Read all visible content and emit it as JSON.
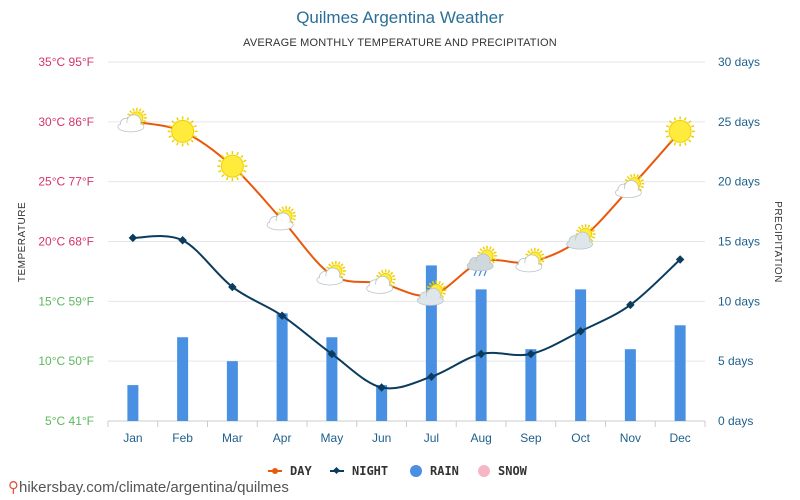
{
  "chart_data": {
    "type": "line+bar",
    "title": "Quilmes Argentina Weather",
    "subtitle": "AVERAGE MONTHLY TEMPERATURE AND PRECIPITATION",
    "ylabel": "TEMPERATURE",
    "y2label": "PRECIPITATION",
    "categories": [
      "Jan",
      "Feb",
      "Mar",
      "Apr",
      "May",
      "Jun",
      "Jul",
      "Aug",
      "Sep",
      "Oct",
      "Nov",
      "Dec"
    ],
    "temperature_ticks": [
      {
        "value": 35,
        "label": "35°C 95°F",
        "color": "#d6336c"
      },
      {
        "value": 30,
        "label": "30°C 86°F",
        "color": "#d6336c"
      },
      {
        "value": 25,
        "label": "25°C 77°F",
        "color": "#d6336c"
      },
      {
        "value": 20,
        "label": "20°C 68°F",
        "color": "#d6336c"
      },
      {
        "value": 15,
        "label": "15°C 59°F",
        "color": "#5cb85c"
      },
      {
        "value": 10,
        "label": "10°C 50°F",
        "color": "#5cb85c"
      },
      {
        "value": 5,
        "label": "5°C 41°F",
        "color": "#5cb85c"
      }
    ],
    "precip_ticks": [
      {
        "value": 30,
        "label": "30 days"
      },
      {
        "value": 25,
        "label": "25 days"
      },
      {
        "value": 20,
        "label": "20 days"
      },
      {
        "value": 15,
        "label": "15 days"
      },
      {
        "value": 10,
        "label": "10 days"
      },
      {
        "value": 5,
        "label": "5 days"
      },
      {
        "value": 0,
        "label": "0 days"
      }
    ],
    "temp_range": [
      5,
      35
    ],
    "precip_range": [
      0,
      30
    ],
    "series": [
      {
        "name": "DAY",
        "kind": "line",
        "color": "#e8590c",
        "values": [
          30,
          29.2,
          26.3,
          21.8,
          17.2,
          16.5,
          15.5,
          18.3,
          18.3,
          20.2,
          24.5,
          29.2
        ]
      },
      {
        "name": "NIGHT",
        "kind": "line",
        "color": "#0b3c5d",
        "values": [
          20.3,
          20.1,
          16.2,
          13.8,
          10.6,
          7.8,
          8.7,
          10.6,
          10.6,
          12.5,
          14.7,
          18.5
        ]
      },
      {
        "name": "RAIN",
        "kind": "bar",
        "color": "#4a90e2",
        "values": [
          3,
          7,
          5,
          9,
          7,
          3,
          13,
          11,
          6,
          11,
          6,
          8
        ]
      },
      {
        "name": "SNOW",
        "kind": "bar",
        "color": "#f7b6c6",
        "values": [
          0,
          0,
          0,
          0,
          0,
          0,
          0,
          0,
          0,
          0,
          0,
          0
        ]
      }
    ],
    "weather_icons": [
      "partly-cloudy",
      "sunny",
      "sunny",
      "partly-cloudy",
      "partly-cloudy",
      "partly-cloudy",
      "cloudy",
      "rainy",
      "partly-cloudy",
      "cloudy",
      "partly-cloudy",
      "sunny"
    ],
    "legend": [
      "DAY",
      "NIGHT",
      "RAIN",
      "SNOW"
    ]
  },
  "source": {
    "pin": "⚲",
    "text": "hikersbay.com/climate/argentina/quilmes"
  }
}
